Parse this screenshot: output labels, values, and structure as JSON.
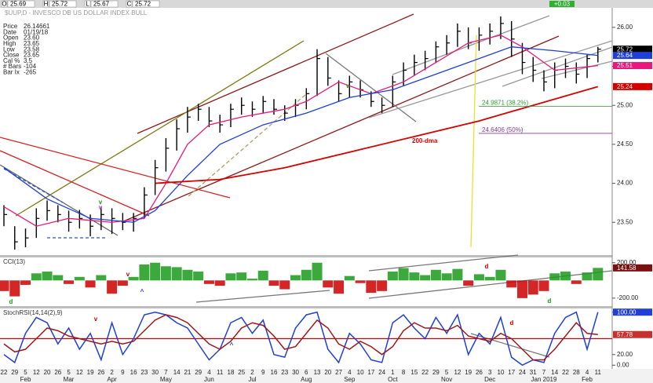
{
  "chart_data": [
    {
      "type": "ohlc",
      "title": "$UUP,D - INVESCO DB US DOLLAR INDEX BULL",
      "header": [
        {
          "label": "O",
          "value": 25.69
        },
        {
          "label": "H",
          "value": 25.72
        },
        {
          "label": "L",
          "value": 25.67
        },
        {
          "label": "C",
          "value": 25.72
        }
      ],
      "change": "+0.03",
      "info": [
        [
          "Price",
          "26.14661"
        ],
        [
          "Date",
          "01/19/18"
        ],
        [
          "Open",
          "23.60"
        ],
        [
          "High",
          "23.65"
        ],
        [
          "Low",
          "23.58"
        ],
        [
          "Close",
          "23.65"
        ],
        [
          "Cal %",
          "3.5"
        ],
        [
          "# Bars",
          "-104"
        ],
        [
          "Bar Ix",
          "-265"
        ]
      ],
      "categories": [
        "22",
        "29",
        "5",
        "12",
        "20",
        "26",
        "5",
        "12",
        "19",
        "26",
        "2",
        "9",
        "16",
        "23",
        "30",
        "7",
        "14",
        "21",
        "29",
        "4",
        "11",
        "18",
        "25",
        "2",
        "9",
        "16",
        "23",
        "30",
        "6",
        "13",
        "20",
        "27",
        "4",
        "10",
        "17",
        "24",
        "1",
        "8",
        "15",
        "22",
        "29",
        "5",
        "12",
        "19",
        "26",
        "3",
        "10",
        "17",
        "24",
        "31",
        "7",
        "14",
        "22",
        "28",
        "4",
        "11"
      ],
      "months": [
        null,
        null,
        "Feb",
        null,
        null,
        null,
        "Mar",
        null,
        null,
        null,
        "Apr",
        null,
        null,
        null,
        null,
        "May",
        null,
        null,
        null,
        "Jun",
        null,
        null,
        null,
        "Jul",
        null,
        null,
        null,
        null,
        "Aug",
        null,
        null,
        null,
        "Sep",
        null,
        null,
        null,
        "Oct",
        null,
        null,
        null,
        null,
        "Nov",
        null,
        null,
        null,
        "Dec",
        null,
        null,
        null,
        null,
        "Jan 2019",
        null,
        null,
        null,
        "Feb",
        null
      ],
      "high": [
        23.72,
        23.45,
        23.42,
        23.68,
        23.78,
        23.72,
        23.65,
        23.66,
        23.6,
        23.7,
        23.68,
        23.62,
        23.62,
        23.95,
        24.3,
        24.58,
        24.82,
        24.98,
        25.02,
        24.98,
        24.88,
        25.02,
        25.1,
        25.05,
        25.12,
        25.08,
        25.0,
        25.08,
        25.22,
        25.72,
        25.62,
        25.32,
        25.38,
        25.32,
        25.18,
        25.1,
        25.38,
        25.55,
        25.65,
        25.7,
        25.82,
        25.9,
        26.05,
        26.0,
        26.0,
        26.05,
        26.14,
        26.08,
        25.8,
        25.62,
        25.45,
        25.55,
        25.6,
        25.55,
        25.65,
        25.75
      ],
      "low": [
        23.45,
        23.15,
        23.18,
        23.3,
        23.52,
        23.5,
        23.38,
        23.42,
        23.32,
        23.4,
        23.35,
        23.4,
        23.38,
        23.55,
        23.85,
        24.15,
        24.42,
        24.65,
        24.8,
        24.72,
        24.65,
        24.72,
        24.88,
        24.85,
        24.9,
        24.88,
        24.8,
        24.85,
        24.95,
        25.12,
        25.25,
        25.05,
        25.1,
        25.1,
        24.98,
        24.9,
        24.98,
        25.25,
        25.38,
        25.45,
        25.55,
        25.65,
        25.75,
        25.72,
        25.7,
        25.78,
        25.85,
        25.62,
        25.4,
        25.3,
        25.18,
        25.22,
        25.35,
        25.28,
        25.35,
        25.55
      ],
      "close": [
        23.6,
        23.25,
        23.3,
        23.55,
        23.65,
        23.6,
        23.5,
        23.55,
        23.45,
        23.6,
        23.55,
        23.5,
        23.55,
        23.85,
        24.2,
        24.45,
        24.7,
        24.85,
        24.95,
        24.8,
        24.75,
        24.95,
        25.0,
        24.95,
        25.05,
        24.95,
        24.9,
        25.0,
        25.15,
        25.6,
        25.35,
        25.15,
        25.3,
        25.2,
        25.05,
        25.0,
        25.3,
        25.45,
        25.55,
        25.6,
        25.75,
        25.8,
        25.95,
        25.8,
        25.9,
        25.95,
        26.05,
        25.85,
        25.55,
        25.45,
        25.3,
        25.45,
        25.5,
        25.4,
        25.6,
        25.72
      ],
      "color": "#000000",
      "ma": [
        {
          "color": "#e8197a",
          "x": [
            0,
            3,
            6,
            10,
            13,
            15,
            17,
            19,
            22,
            26,
            28,
            31,
            34,
            37,
            40,
            43,
            46,
            48,
            51,
            55
          ],
          "values": [
            23.7,
            23.45,
            23.55,
            23.5,
            23.55,
            24.0,
            24.5,
            24.75,
            24.85,
            24.95,
            25.05,
            25.3,
            25.15,
            25.3,
            25.55,
            25.8,
            25.9,
            25.75,
            25.45,
            25.51
          ]
        },
        {
          "color": "#1f3fd8",
          "x": [
            0,
            4,
            8,
            12,
            14,
            17,
            20,
            24,
            28,
            32,
            36,
            40,
            44,
            47,
            51,
            55
          ],
          "values": [
            24.2,
            23.8,
            23.55,
            23.5,
            23.65,
            24.1,
            24.5,
            24.75,
            24.9,
            25.1,
            25.2,
            25.4,
            25.6,
            25.75,
            25.7,
            25.64
          ]
        },
        {
          "name": "200-dma",
          "color": "#d40000",
          "x": [
            14,
            20,
            26,
            32,
            38,
            44,
            49,
            55
          ],
          "values": [
            24.0,
            24.05,
            24.2,
            24.4,
            24.6,
            24.8,
            25.0,
            25.24
          ]
        }
      ],
      "fib": [
        {
          "value": 24.9871,
          "label": "24.9871 (38.2%)",
          "color": "#2a9a2a"
        },
        {
          "value": 24.6406,
          "label": "24.6406 (50%)",
          "color": "#8a3a9a"
        }
      ],
      "last_values": [
        {
          "value": 25.72,
          "color": "#000000"
        },
        {
          "value": 25.64,
          "color": "#1f3fd8"
        },
        {
          "value": 25.51,
          "color": "#e8197a"
        },
        {
          "value": 25.24,
          "color": "#d40000"
        }
      ],
      "annotations": [
        {
          "text": "v",
          "color": "#1a9a1a"
        },
        {
          "text": "v",
          "color": "#d020d0"
        },
        {
          "text": "v",
          "color": "#1a9a1a"
        }
      ],
      "ylim": [
        23.08,
        26.23
      ],
      "yticks": [
        {
          "value": 23.5,
          "label": "23.50"
        },
        {
          "value": 24,
          "label": "24.00"
        },
        {
          "value": 24.5,
          "label": "24.50"
        },
        {
          "value": 25,
          "label": "25.00"
        },
        {
          "value": 25.5,
          "label": "25.50"
        },
        {
          "value": 26,
          "label": "26.00"
        }
      ]
    },
    {
      "type": "bar",
      "title": "CCI(13)",
      "values": [
        -120,
        -180,
        -50,
        80,
        100,
        60,
        -40,
        40,
        -80,
        60,
        -150,
        -60,
        40,
        180,
        200,
        160,
        150,
        120,
        100,
        -40,
        -60,
        80,
        90,
        20,
        110,
        -60,
        -100,
        60,
        120,
        200,
        -80,
        -150,
        50,
        -30,
        -140,
        -120,
        100,
        140,
        90,
        60,
        120,
        80,
        130,
        -60,
        70,
        40,
        120,
        -80,
        -200,
        -160,
        -120,
        80,
        100,
        -40,
        90,
        141.58
      ],
      "up_color": "#1a9a1a",
      "down_color": "#cc0000",
      "last_values": [
        {
          "value": 141.58,
          "color": "#7a1010"
        }
      ],
      "annotations": [
        {
          "text": "d",
          "color": "#1a9a1a"
        },
        {
          "text": "v",
          "color": "#cc0000"
        },
        {
          "text": "^",
          "color": "#1f3fd8"
        },
        {
          "text": "d",
          "color": "#cc0000"
        },
        {
          "text": "d",
          "color": "#1a9a1a"
        }
      ],
      "ylim": [
        -290,
        260
      ],
      "yticks": [
        {
          "value": 200,
          "label": "200.00"
        },
        {
          "value": -200,
          "label": "-200.00"
        }
      ]
    },
    {
      "type": "line",
      "title": "StochRSI(14,14(2),9)",
      "series": [
        {
          "color": "#1f3fd8",
          "values": [
            20,
            5,
            60,
            90,
            80,
            40,
            70,
            30,
            60,
            10,
            80,
            20,
            50,
            95,
            100,
            95,
            80,
            70,
            40,
            10,
            30,
            80,
            90,
            60,
            85,
            20,
            15,
            70,
            95,
            100,
            30,
            5,
            60,
            40,
            10,
            5,
            80,
            95,
            70,
            50,
            90,
            60,
            95,
            20,
            60,
            40,
            90,
            15,
            0,
            10,
            5,
            60,
            90,
            100,
            30,
            100
          ]
        },
        {
          "color": "#a01818",
          "values": [
            40,
            25,
            30,
            50,
            70,
            65,
            55,
            50,
            45,
            40,
            45,
            40,
            45,
            65,
            85,
            95,
            90,
            80,
            60,
            40,
            30,
            45,
            70,
            80,
            75,
            55,
            30,
            35,
            60,
            85,
            70,
            40,
            30,
            45,
            35,
            20,
            35,
            65,
            80,
            70,
            70,
            65,
            75,
            55,
            50,
            45,
            60,
            50,
            30,
            10,
            10,
            30,
            55,
            80,
            60,
            57.78
          ]
        }
      ],
      "hline": 50,
      "last_values": [
        {
          "value": 100,
          "label": "100.00",
          "color": "#1f3fd8"
        },
        {
          "value": 57.78,
          "color": "#c83030"
        }
      ],
      "annotations": [
        {
          "text": "v",
          "color": "#cc0000"
        },
        {
          "text": "^",
          "color": "#1f3fd8"
        },
        {
          "text": "d",
          "color": "#cc0000"
        }
      ],
      "ylim": [
        -7,
        107
      ],
      "yticks": [
        {
          "value": 100,
          "label": "100.00"
        },
        {
          "value": 20,
          "label": "20.00"
        },
        {
          "value": 0,
          "label": "0.00"
        }
      ]
    }
  ]
}
